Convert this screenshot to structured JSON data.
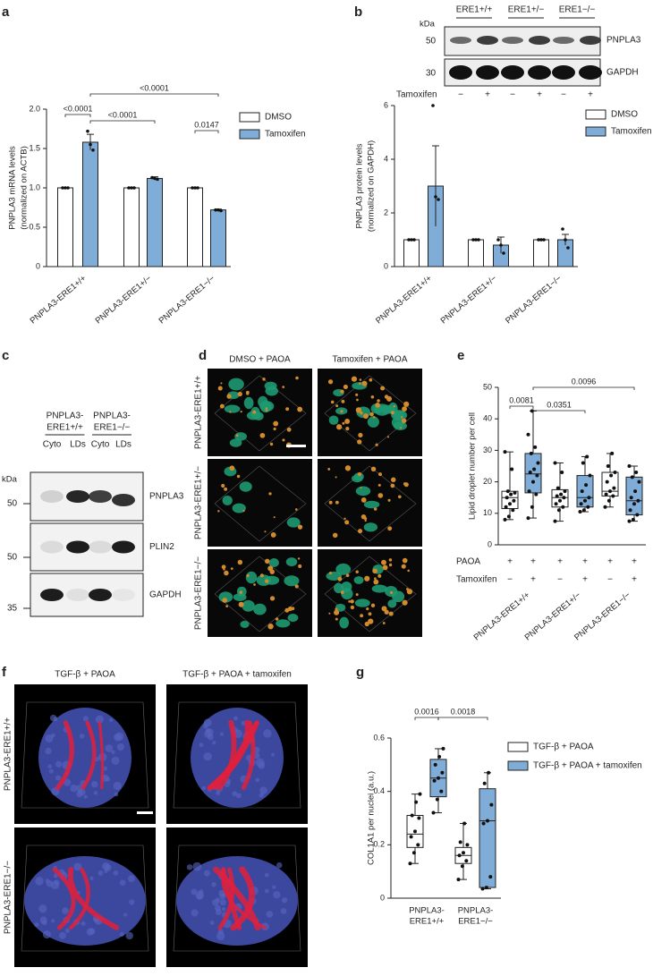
{
  "panels": [
    "a",
    "b",
    "c",
    "d",
    "e",
    "f",
    "g"
  ],
  "blot_b": {
    "kda": "kDa",
    "markers": [
      "50",
      "30"
    ],
    "groups": [
      "ERE1+/+",
      "ERE1+/−",
      "ERE1−/−"
    ],
    "proteins": [
      "PNPLA3",
      "GAPDH"
    ],
    "treatment": "Tamoxifen",
    "signs": [
      "−",
      "+",
      "−",
      "+",
      "−",
      "+"
    ]
  },
  "blot_c": {
    "groups": [
      [
        "PNPLA3-",
        "ERE1+/+"
      ],
      [
        "PNPLA3-",
        "ERE1−/−"
      ]
    ],
    "lanes": [
      "Cyto",
      "LDs",
      "Cyto",
      "LDs"
    ],
    "kda": "kDa",
    "markers": [
      "50",
      "50",
      "35"
    ],
    "proteins": [
      "PNPLA3",
      "PLIN2",
      "GAPDH"
    ]
  },
  "images_d": {
    "columns": [
      "DMSO + PAOA",
      "Tamoxifen + PAOA"
    ],
    "rows": [
      "PNPLA3-ERE1+/+",
      "PNPLA3-ERE1+/−",
      "PNPLA3-ERE1−/−"
    ]
  },
  "images_f": {
    "columns": [
      "TGF-β + PAOA",
      "TGF-β + PAOA + tamoxifen"
    ],
    "rows": [
      "PNPLA3-ERE1+/+",
      "PNPLA3-ERE1−/−"
    ]
  },
  "chart_data": [
    {
      "type": "bar",
      "ylabel": [
        "PNPLA3 mRNA levels",
        "(normalized on ACTB)"
      ],
      "categories": [
        "PNPLA3-ERE1+/+",
        "PNPLA3-ERE1+/−",
        "PNPLA3-ERE1−/−"
      ],
      "series": [
        {
          "name": "DMSO",
          "color": "#ffffff",
          "values": [
            1,
            1,
            1
          ],
          "errors": [
            0,
            0,
            0
          ],
          "points": [
            [
              1,
              1,
              1
            ],
            [
              1,
              1,
              1
            ],
            [
              1,
              1,
              1
            ]
          ]
        },
        {
          "name": "Tamoxifen",
          "color": "#80acd8",
          "values": [
            1.58,
            1.12,
            0.72
          ],
          "errors": [
            0.1,
            0.02,
            0.01
          ],
          "points": [
            [
              1.72,
              1.55,
              1.48
            ],
            [
              1.13,
              1.12,
              1.11
            ],
            [
              0.72,
              0.72,
              0.71
            ]
          ]
        }
      ],
      "ylim": [
        0,
        2
      ],
      "yticks": [
        0,
        0.5,
        {
          "value": 1,
          "label": "1.0"
        },
        1.5,
        {
          "value": 2,
          "label": "2.0"
        }
      ],
      "annotations": [
        "<0.0001",
        "<0.0001",
        "<0.0001",
        "0.0147"
      ],
      "legend": "upper right"
    },
    {
      "type": "bar",
      "ylabel": [
        "PNPLA3 protein levels",
        "(normalized on GAPDH)"
      ],
      "categories": [
        "PNPLA3-ERE1+/+",
        "PNPLA3-ERE1+/−",
        "PNPLA3-ERE1−/−"
      ],
      "series": [
        {
          "name": "DMSO",
          "color": "#ffffff",
          "values": [
            1,
            1,
            1
          ],
          "errors": [
            0,
            0,
            0
          ],
          "points": [
            [
              1,
              1,
              1
            ],
            [
              1,
              1,
              1
            ],
            [
              1,
              1,
              1
            ]
          ]
        },
        {
          "name": "Tamoxifen",
          "color": "#80acd8",
          "values": [
            3.0,
            0.8,
            1.0
          ],
          "errors": [
            1.5,
            0.3,
            0.2
          ],
          "points": [
            [
              6.0,
              2.6,
              2.5
            ],
            [
              1.0,
              0.8,
              0.5
            ],
            [
              1.4,
              1.0,
              0.7
            ]
          ]
        }
      ],
      "ylim": [
        0,
        6
      ],
      "yticks": [
        0,
        2,
        4,
        6
      ],
      "annotations": [],
      "legend": "upper right"
    },
    {
      "type": "box",
      "ylabel": [
        "Lipid droplet number per cell"
      ],
      "categories": [
        "PNPLA3-ERE1+/+",
        "PNPLA3-ERE1+/−",
        "PNPLA3-ERE1−/−"
      ],
      "boxes": [
        {
          "color": "#ffffff",
          "stats": [
            8,
            11.5,
            15,
            17,
            29.5
          ],
          "points": [
            8,
            9,
            11,
            12,
            13,
            14,
            15,
            16,
            16.5,
            17,
            24,
            29.5
          ]
        },
        {
          "color": "#80acd8",
          "stats": [
            8.5,
            16.5,
            22.5,
            29,
            42.5
          ],
          "points": [
            8.5,
            12,
            16,
            17,
            20,
            22,
            23,
            24,
            26,
            29,
            31,
            35,
            42.5
          ]
        },
        {
          "color": "#ffffff",
          "stats": [
            7.5,
            12,
            15,
            17.5,
            26
          ],
          "points": [
            7.5,
            11,
            12,
            13,
            14,
            15,
            15.5,
            16,
            17,
            18,
            23,
            26
          ]
        },
        {
          "color": "#80acd8",
          "stats": [
            10.5,
            12,
            15,
            22,
            28
          ],
          "points": [
            10.5,
            11,
            12,
            13,
            14,
            15,
            17,
            19,
            22,
            26,
            28
          ]
        },
        {
          "color": "#ffffff",
          "stats": [
            12,
            15.5,
            17,
            23,
            29
          ],
          "points": [
            12,
            14,
            15.5,
            16,
            17,
            18,
            20,
            22,
            23,
            25,
            29
          ]
        },
        {
          "color": "#80acd8",
          "stats": [
            7.5,
            9.5,
            14,
            21.5,
            25
          ],
          "points": [
            7.5,
            8,
            9.5,
            11,
            13,
            14,
            15,
            17,
            20,
            21.5,
            23,
            25
          ]
        }
      ],
      "ylim": [
        0,
        50
      ],
      "yticks": [
        0,
        10,
        20,
        30,
        40,
        50
      ],
      "annotations": [
        "0.0081",
        "0.0351",
        "0.0096"
      ],
      "table": [
        {
          "label": "PAOA",
          "values": [
            "+",
            "+",
            "+",
            "+",
            "+",
            "+"
          ]
        },
        {
          "label": "Tamoxifen",
          "values": [
            "−",
            "+",
            "−",
            "+",
            "−",
            "+"
          ]
        }
      ]
    },
    {
      "type": "box",
      "ylabel": [
        "COL1A1 per nuclei (a.u.)"
      ],
      "categories": [
        [
          "PNPLA3-",
          "ERE1+/+"
        ],
        [
          "PNPLA3-",
          "ERE1−/−"
        ]
      ],
      "series": [
        {
          "name": "TGF-β + PAOA",
          "color": "#ffffff"
        },
        {
          "name": "TGF-β + PAOA + tamoxifen",
          "color": "#80acd8"
        }
      ],
      "boxes": [
        {
          "color": "#ffffff",
          "stats": [
            0.13,
            0.19,
            0.24,
            0.31,
            0.39
          ],
          "points": [
            0.13,
            0.17,
            0.2,
            0.23,
            0.25,
            0.3,
            0.31,
            0.36,
            0.39
          ]
        },
        {
          "color": "#80acd8",
          "stats": [
            0.32,
            0.38,
            0.45,
            0.52,
            0.56
          ],
          "points": [
            0.32,
            0.37,
            0.4,
            0.44,
            0.45,
            0.47,
            0.5,
            0.53,
            0.56
          ]
        },
        {
          "color": "#ffffff",
          "stats": [
            0.07,
            0.13,
            0.16,
            0.19,
            0.28
          ],
          "points": [
            0.07,
            0.12,
            0.14,
            0.16,
            0.17,
            0.2,
            0.21,
            0.28
          ]
        },
        {
          "color": "#80acd8",
          "stats": [
            0.035,
            0.04,
            0.29,
            0.41,
            0.47
          ],
          "points": [
            0.035,
            0.04,
            0.08,
            0.28,
            0.29,
            0.35,
            0.43,
            0.47
          ]
        }
      ],
      "ylim": [
        0,
        0.6
      ],
      "yticks": [
        0,
        0.2,
        0.4,
        0.6
      ],
      "annotations": [
        "0.0016",
        "0.0018"
      ],
      "legend": "right"
    }
  ]
}
